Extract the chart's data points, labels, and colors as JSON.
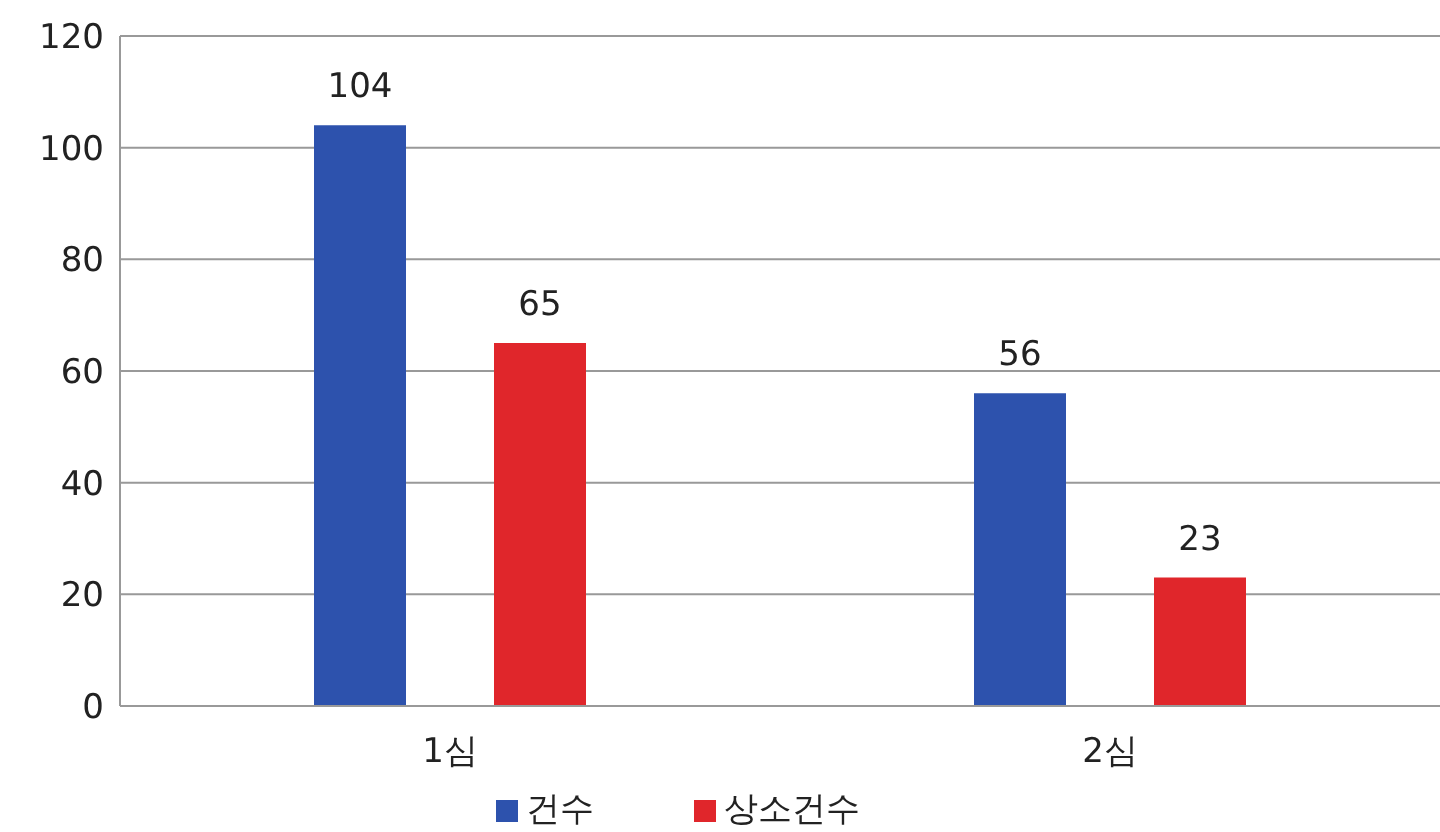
{
  "chart_data": {
    "type": "bar",
    "categories": [
      "1심",
      "2심"
    ],
    "series": [
      {
        "name": "건수",
        "color": "#2d52ad",
        "values": [
          104,
          56
        ]
      },
      {
        "name": "상소건수",
        "color": "#e0262b",
        "values": [
          65,
          23
        ]
      }
    ],
    "ylim": [
      0,
      120
    ],
    "yticks": [
      0,
      20,
      40,
      60,
      80,
      100,
      120
    ],
    "grid": "y",
    "legend": "bottom",
    "data_labels": true
  }
}
